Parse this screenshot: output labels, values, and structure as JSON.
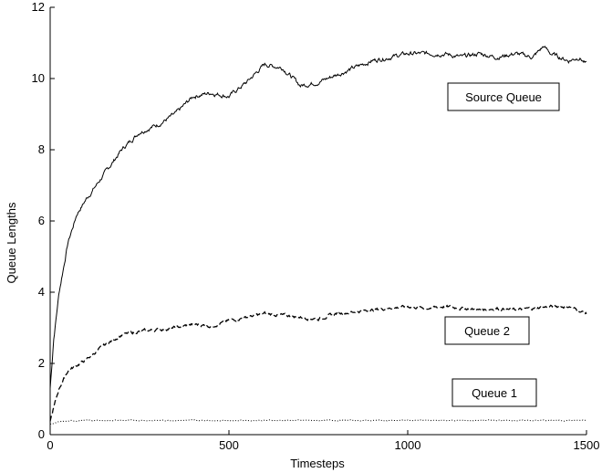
{
  "chart_data": {
    "type": "line",
    "title": "",
    "xlabel": "Timesteps",
    "ylabel": "Queue Lengths",
    "xlim": [
      0,
      1500
    ],
    "ylim": [
      0,
      12
    ],
    "xticks": [
      0,
      500,
      1000,
      1500
    ],
    "yticks": [
      0,
      2,
      4,
      6,
      8,
      10,
      12
    ],
    "grid": false,
    "series": [
      {
        "name": "Source Queue",
        "style": "solid",
        "x": [
          0,
          10,
          25,
          50,
          75,
          100,
          150,
          200,
          250,
          300,
          350,
          400,
          450,
          500,
          550,
          600,
          650,
          700,
          750,
          800,
          850,
          900,
          950,
          1000,
          1050,
          1100,
          1150,
          1200,
          1250,
          1300,
          1350,
          1380,
          1400,
          1450,
          1480,
          1500
        ],
        "values": [
          1.3,
          2.7,
          4.0,
          5.4,
          6.2,
          6.6,
          7.3,
          8.0,
          8.5,
          8.7,
          9.0,
          9.5,
          9.6,
          9.5,
          9.9,
          10.4,
          10.3,
          9.8,
          9.9,
          10.1,
          10.3,
          10.5,
          10.6,
          10.7,
          10.7,
          10.7,
          10.6,
          10.7,
          10.6,
          10.7,
          10.6,
          10.9,
          10.7,
          10.5,
          10.6,
          10.4
        ]
      },
      {
        "name": "Queue 2",
        "style": "dashed",
        "x": [
          0,
          25,
          50,
          100,
          150,
          200,
          250,
          300,
          350,
          400,
          450,
          500,
          550,
          600,
          650,
          700,
          750,
          800,
          850,
          900,
          950,
          1000,
          1050,
          1100,
          1150,
          1200,
          1250,
          1300,
          1350,
          1400,
          1450,
          1500
        ],
        "values": [
          0.4,
          1.3,
          1.8,
          2.1,
          2.5,
          2.8,
          2.9,
          2.95,
          3.0,
          3.1,
          3.05,
          3.2,
          3.3,
          3.4,
          3.35,
          3.3,
          3.25,
          3.4,
          3.45,
          3.5,
          3.55,
          3.6,
          3.55,
          3.6,
          3.55,
          3.5,
          3.55,
          3.5,
          3.55,
          3.6,
          3.6,
          3.4
        ]
      },
      {
        "name": "Queue 1",
        "style": "dotted",
        "x": [
          0,
          25,
          50,
          100,
          200,
          300,
          400,
          500,
          600,
          700,
          800,
          900,
          1000,
          1100,
          1200,
          1300,
          1400,
          1500
        ],
        "values": [
          0.3,
          0.35,
          0.38,
          0.4,
          0.4,
          0.4,
          0.4,
          0.4,
          0.4,
          0.4,
          0.4,
          0.4,
          0.4,
          0.4,
          0.4,
          0.4,
          0.4,
          0.4
        ]
      }
    ],
    "annotations": [
      {
        "text": "Source Queue",
        "series": "Source Queue"
      },
      {
        "text": "Queue 2",
        "series": "Queue 2"
      },
      {
        "text": "Queue 1",
        "series": "Queue 1"
      }
    ]
  }
}
